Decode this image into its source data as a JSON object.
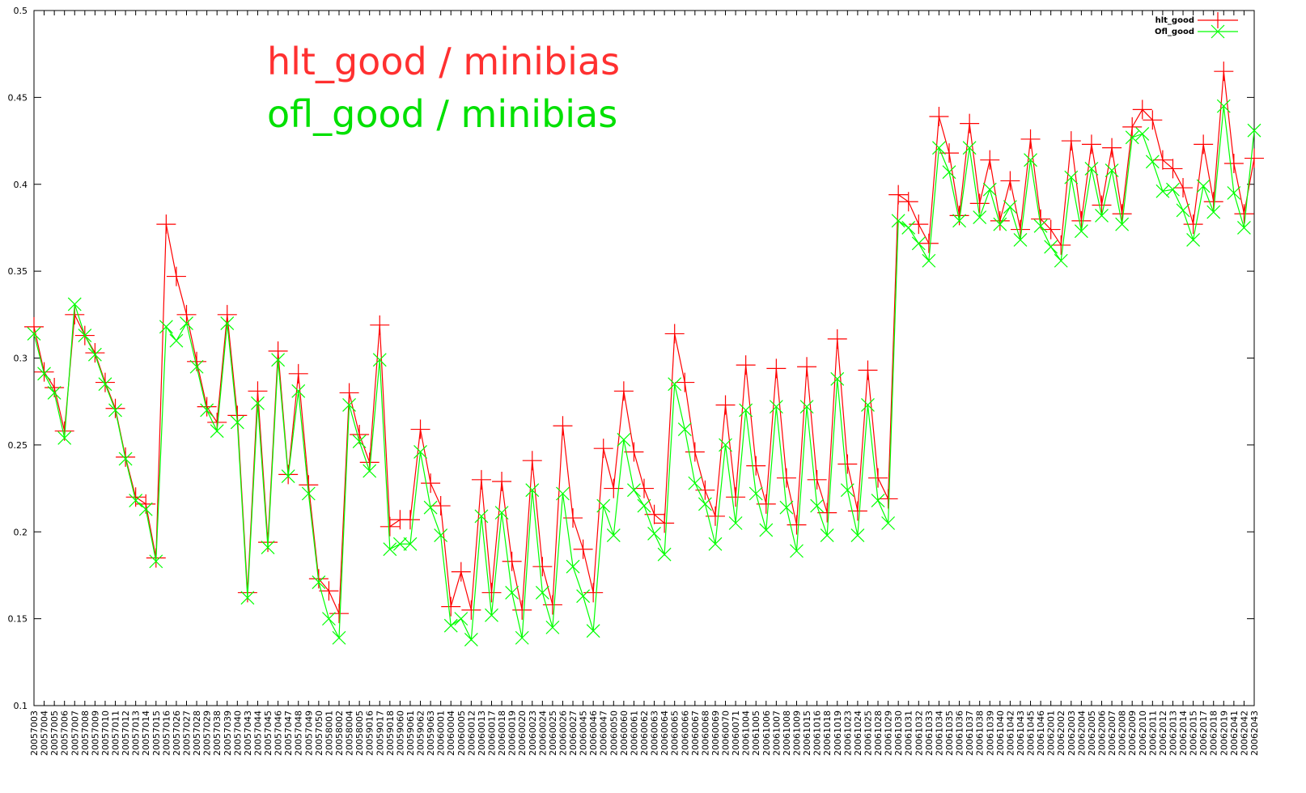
{
  "chart_data": {
    "type": "line",
    "annotations": [
      {
        "text": "hlt_good /  minibias",
        "color": "#ff3030"
      },
      {
        "text": "ofl_good /  minibias",
        "color": "#00e000"
      }
    ],
    "categories": [
      "20057003",
      "20057004",
      "20057005",
      "20057006",
      "20057007",
      "20057008",
      "20057009",
      "20057010",
      "20057011",
      "20057012",
      "20057013",
      "20057014",
      "20057015",
      "20057016",
      "20057026",
      "20057027",
      "20057028",
      "20057029",
      "20057038",
      "20057039",
      "20057040",
      "20057043",
      "20057044",
      "20057045",
      "20057046",
      "20057047",
      "20057048",
      "20057049",
      "20057050",
      "20058001",
      "20058002",
      "20058004",
      "20058005",
      "20059016",
      "20059017",
      "20059018",
      "20059060",
      "20059061",
      "20059062",
      "20059063",
      "20060001",
      "20060004",
      "20060005",
      "20060012",
      "20060013",
      "20060017",
      "20060018",
      "20060019",
      "20060020",
      "20060023",
      "20060024",
      "20060025",
      "20060026",
      "20060027",
      "20060045",
      "20060046",
      "20060047",
      "20060050",
      "20060060",
      "20060061",
      "20060062",
      "20060063",
      "20060064",
      "20060065",
      "20060066",
      "20060067",
      "20060068",
      "20060069",
      "20060070",
      "20060071",
      "20061004",
      "20061005",
      "20061006",
      "20061007",
      "20061008",
      "20061009",
      "20061015",
      "20061016",
      "20061018",
      "20061019",
      "20061023",
      "20061024",
      "20061025",
      "20061028",
      "20061029",
      "20061030",
      "20061031",
      "20061032",
      "20061033",
      "20061034",
      "20061035",
      "20061036",
      "20061037",
      "20061038",
      "20061039",
      "20061040",
      "20061042",
      "20061043",
      "20061045",
      "20061046",
      "20062001",
      "20062002",
      "20062003",
      "20062004",
      "20062005",
      "20062006",
      "20062007",
      "20062008",
      "20062009",
      "20062010",
      "20062011",
      "20062012",
      "20062013",
      "20062014",
      "20062015",
      "20062017",
      "20062018",
      "20062019",
      "20062041",
      "20062042",
      "20062043"
    ],
    "series": [
      {
        "name": "hlt_good",
        "color": "#ff0000",
        "marker": "plus",
        "values": [
          0.318,
          0.292,
          0.283,
          0.258,
          0.325,
          0.313,
          0.303,
          0.286,
          0.271,
          0.243,
          0.22,
          0.216,
          0.185,
          0.377,
          0.347,
          0.325,
          0.298,
          0.272,
          0.263,
          0.325,
          0.267,
          0.165,
          0.281,
          0.194,
          0.304,
          0.233,
          0.291,
          0.227,
          0.173,
          0.166,
          0.153,
          0.28,
          0.256,
          0.24,
          0.319,
          0.203,
          0.207,
          0.207,
          0.259,
          0.228,
          0.215,
          0.157,
          0.177,
          0.155,
          0.23,
          0.165,
          0.229,
          0.183,
          0.155,
          0.241,
          0.18,
          0.158,
          0.261,
          0.208,
          0.19,
          0.165,
          0.248,
          0.225,
          0.281,
          0.246,
          0.225,
          0.21,
          0.205,
          0.314,
          0.286,
          0.246,
          0.224,
          0.209,
          0.273,
          0.22,
          0.296,
          0.238,
          0.216,
          0.294,
          0.231,
          0.204,
          0.295,
          0.23,
          0.211,
          0.311,
          0.239,
          0.212,
          0.293,
          0.231,
          0.219,
          0.394,
          0.39,
          0.377,
          0.366,
          0.439,
          0.418,
          0.382,
          0.435,
          0.389,
          0.414,
          0.379,
          0.402,
          0.374,
          0.426,
          0.38,
          0.374,
          0.365,
          0.425,
          0.379,
          0.423,
          0.388,
          0.421,
          0.383,
          0.433,
          0.443,
          0.437,
          0.414,
          0.409,
          0.398,
          0.377,
          0.423,
          0.39,
          0.465,
          0.412,
          0.383,
          0.415
        ]
      },
      {
        "name": "Ofl_good",
        "color": "#00ff00",
        "marker": "cross",
        "values": [
          0.314,
          0.291,
          0.28,
          0.254,
          0.331,
          0.313,
          0.302,
          0.285,
          0.27,
          0.242,
          0.218,
          0.213,
          0.183,
          0.318,
          0.31,
          0.32,
          0.295,
          0.27,
          0.258,
          0.32,
          0.263,
          0.162,
          0.274,
          0.191,
          0.299,
          0.232,
          0.281,
          0.222,
          0.171,
          0.15,
          0.139,
          0.273,
          0.252,
          0.235,
          0.299,
          0.19,
          0.193,
          0.193,
          0.246,
          0.214,
          0.198,
          0.146,
          0.15,
          0.138,
          0.209,
          0.152,
          0.211,
          0.165,
          0.139,
          0.224,
          0.165,
          0.145,
          0.222,
          0.18,
          0.163,
          0.143,
          0.215,
          0.198,
          0.253,
          0.224,
          0.215,
          0.199,
          0.187,
          0.285,
          0.259,
          0.228,
          0.216,
          0.193,
          0.25,
          0.205,
          0.27,
          0.222,
          0.201,
          0.272,
          0.214,
          0.189,
          0.272,
          0.215,
          0.198,
          0.288,
          0.224,
          0.198,
          0.273,
          0.218,
          0.205,
          0.379,
          0.375,
          0.366,
          0.356,
          0.421,
          0.407,
          0.379,
          0.421,
          0.381,
          0.397,
          0.377,
          0.387,
          0.368,
          0.414,
          0.376,
          0.364,
          0.356,
          0.404,
          0.373,
          0.409,
          0.382,
          0.408,
          0.377,
          0.427,
          0.429,
          0.413,
          0.396,
          0.397,
          0.385,
          0.368,
          0.399,
          0.384,
          0.445,
          0.395,
          0.375,
          0.431
        ]
      }
    ],
    "ylim": [
      0.1,
      0.5
    ],
    "yticks": [
      0.1,
      0.15,
      0.2,
      0.25,
      0.3,
      0.35,
      0.4,
      0.45,
      0.5
    ],
    "legend": "top-right",
    "grid": false
  }
}
